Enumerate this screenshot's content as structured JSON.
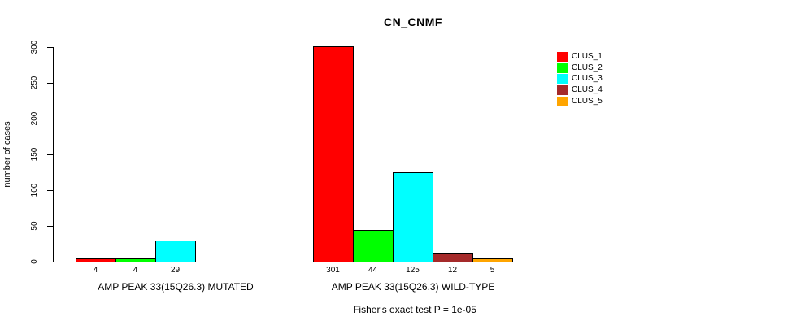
{
  "chart_data": {
    "type": "bar",
    "title": "CN_CNMF",
    "ylabel": "number of cases",
    "xlabel": "",
    "ylim": [
      0,
      300
    ],
    "yticks": [
      0,
      50,
      100,
      150,
      200,
      250,
      300
    ],
    "grid": false,
    "categories": [
      "AMP PEAK 33(15Q26.3) MUTATED",
      "AMP PEAK 33(15Q26.3) WILD-TYPE"
    ],
    "series": [
      {
        "name": "CLUS_1",
        "color": "#FF0000",
        "values": [
          4,
          301
        ]
      },
      {
        "name": "CLUS_2",
        "color": "#00FF00",
        "values": [
          4,
          44
        ]
      },
      {
        "name": "CLUS_3",
        "color": "#00FFFF",
        "values": [
          29,
          125
        ]
      },
      {
        "name": "CLUS_4",
        "color": "#A52A2A",
        "values": [
          0,
          12
        ]
      },
      {
        "name": "CLUS_5",
        "color": "#FFA500",
        "values": [
          0,
          5
        ]
      }
    ],
    "bar_value_labels": {
      "mutated": [
        "4",
        "4",
        "29",
        "",
        ""
      ],
      "wild_type": [
        "301",
        "44",
        "125",
        "12",
        "5"
      ]
    },
    "legend": {
      "position": "top-right",
      "entries": [
        "CLUS_1",
        "CLUS_2",
        "CLUS_3",
        "CLUS_4",
        "CLUS_5"
      ]
    },
    "annotation": "Fisher's exact test P = 1e-05",
    "colors": {
      "background": "#FFFFFF",
      "axis": "#000000",
      "text": "#000000"
    }
  }
}
